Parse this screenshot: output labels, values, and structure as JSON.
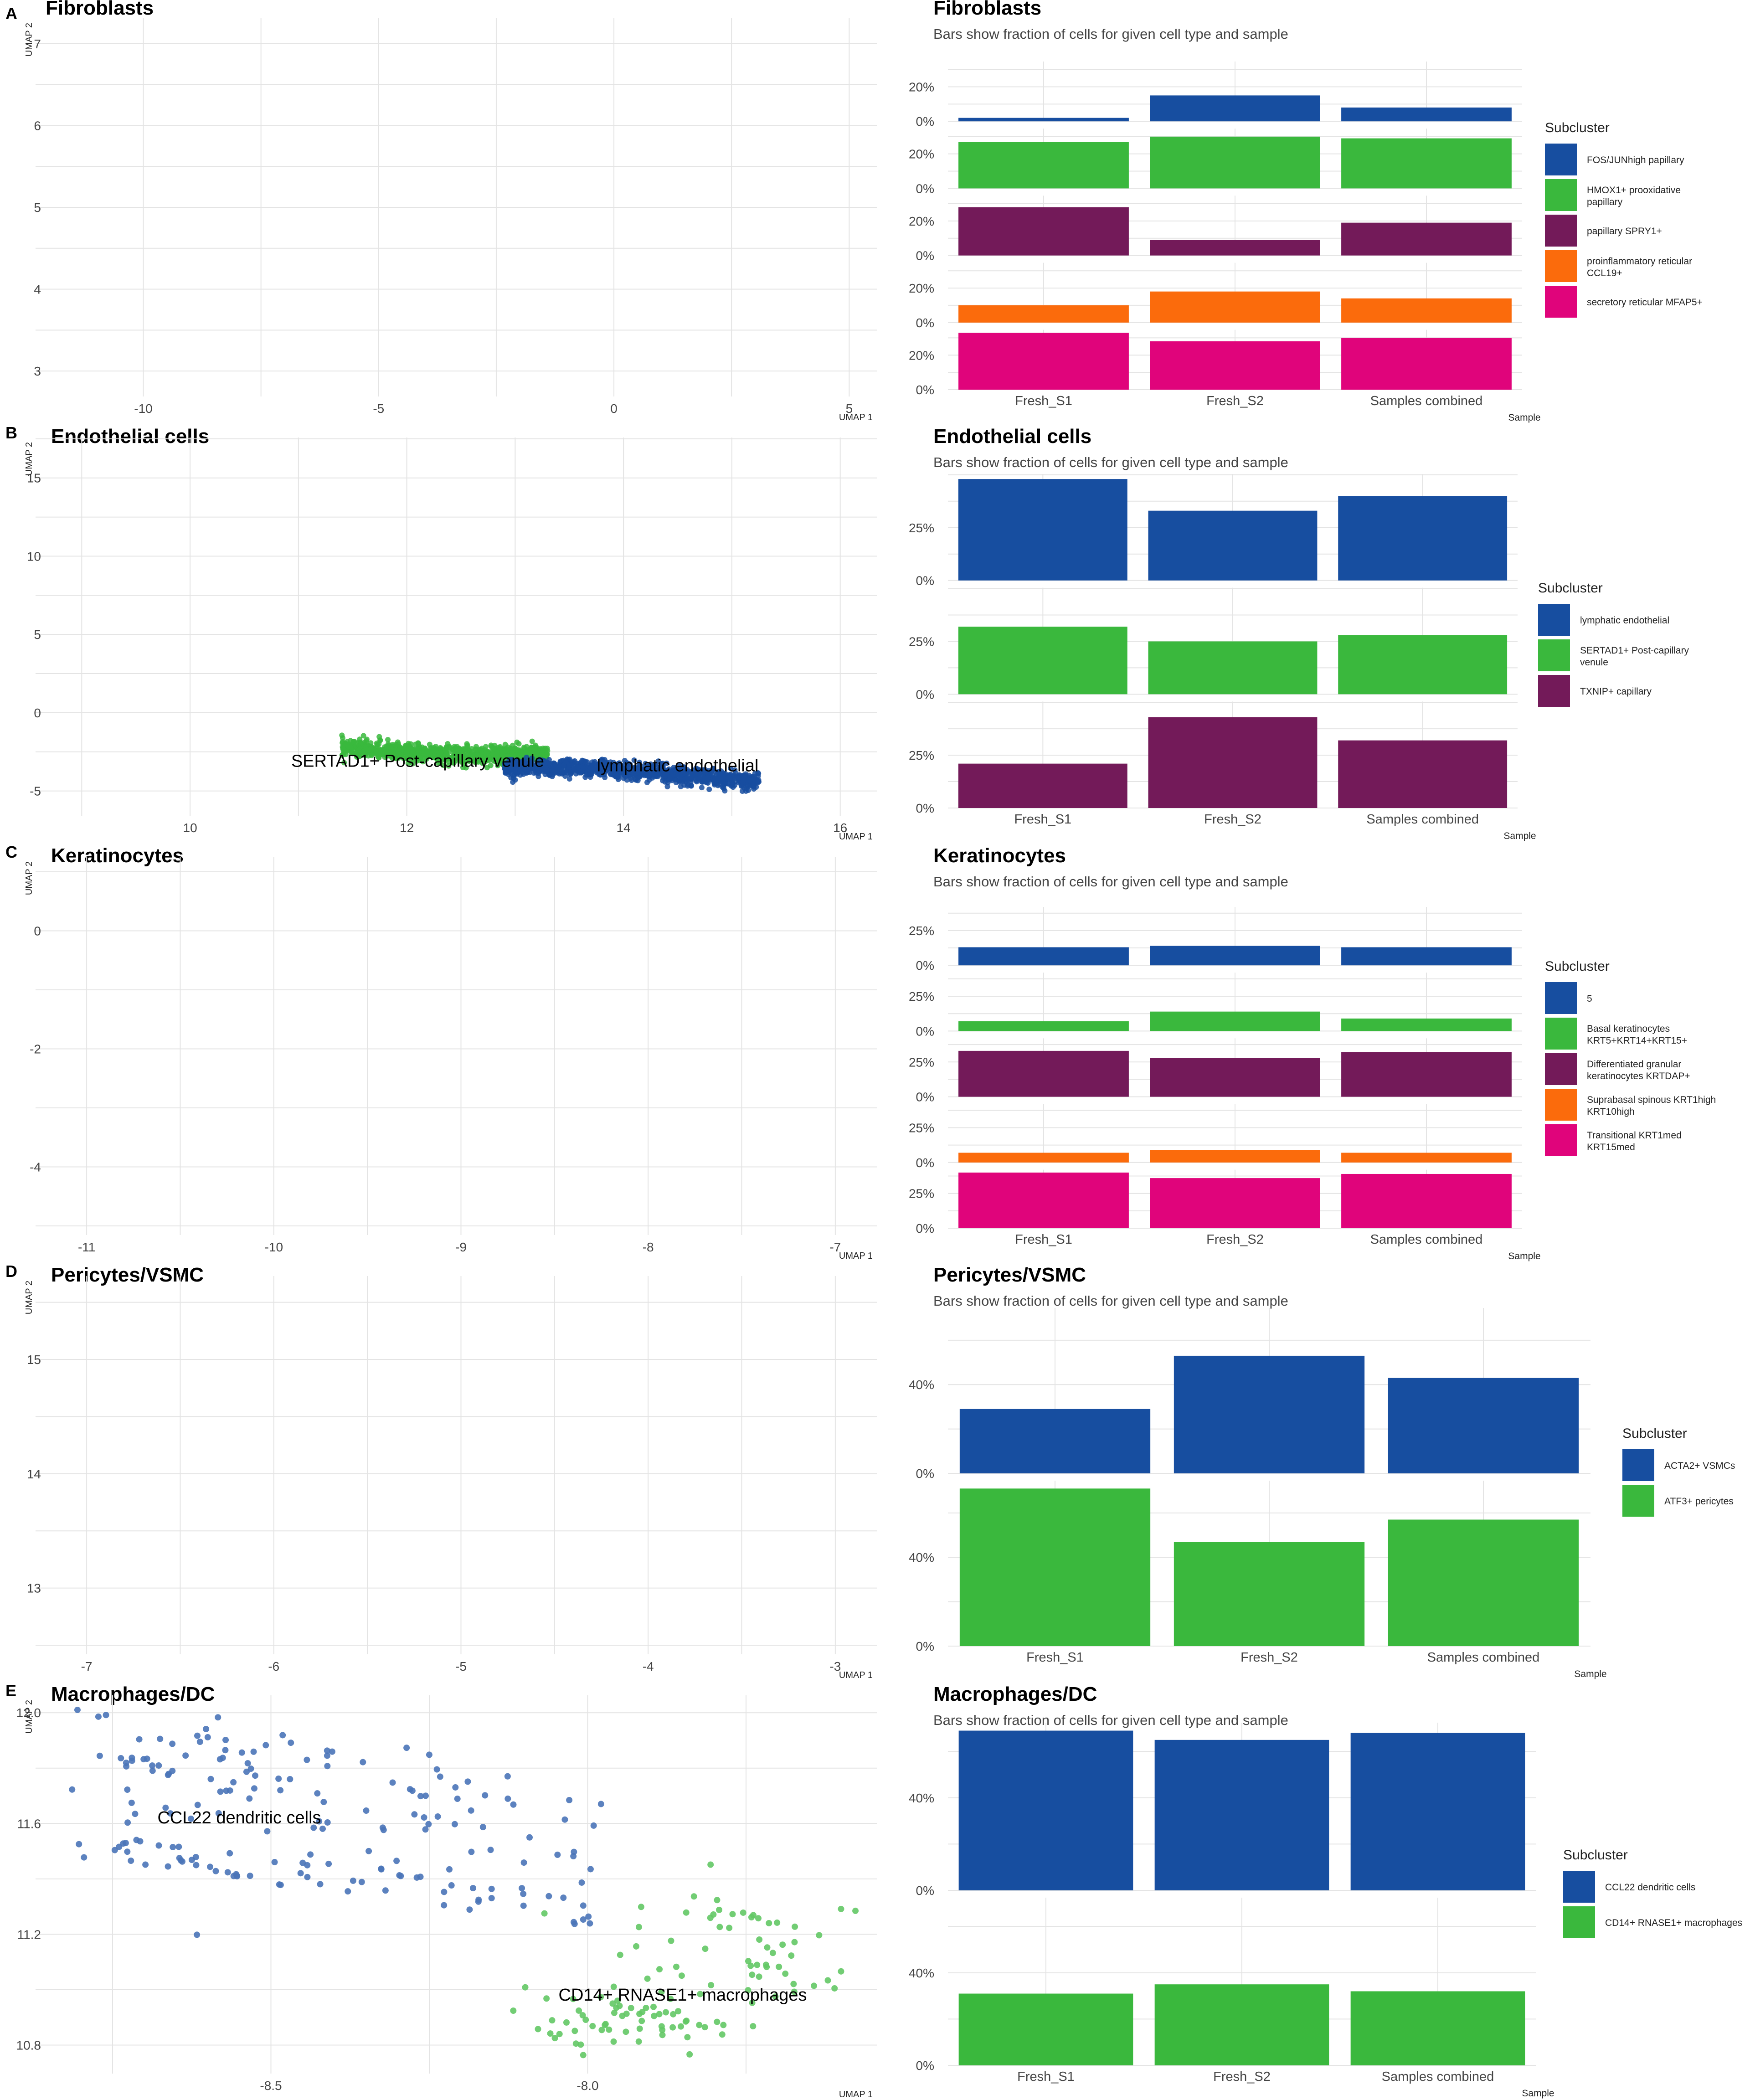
{
  "colors": {
    "blue": "#174EA0",
    "green": "#3AB83D",
    "purple": "#731A59",
    "orange": "#FB6B0C",
    "magenta": "#E0047B",
    "grid": "#E4E4E4",
    "scatter_blue": "#4A74B8",
    "scatter_green": "#63C865"
  },
  "chart_data": [
    {
      "panel": "A",
      "type": "scatter",
      "title": "Fibroblasts",
      "xlabel": "UMAP 1",
      "ylabel": "UMAP 2",
      "xlim": [
        -12,
        5.5
      ],
      "ylim": [
        2.8,
        7.2
      ],
      "xticks": [
        -10,
        -5,
        0,
        5
      ],
      "yticks": [
        3,
        4,
        5,
        6,
        7
      ],
      "points": [],
      "annotations": []
    },
    {
      "panel": "A",
      "type": "bar",
      "title": "Fibroblasts",
      "subtitle": "Bars show fraction of cells for given cell type and sample",
      "xlabel": "Sample",
      "legend_title": "Subcluster",
      "legend_position": "right",
      "categories": [
        "Fresh_S1",
        "Fresh_S2",
        "Samples combined"
      ],
      "tick_labels": [
        "0%",
        "20%"
      ],
      "series": [
        {
          "name": "FOS/JUNhigh papillary",
          "color": "blue",
          "values": [
            0.02,
            0.15,
            0.08
          ]
        },
        {
          "name": "HMOX1+ prooxidative papillary",
          "color": "green",
          "values": [
            0.27,
            0.3,
            0.29
          ]
        },
        {
          "name": "papillary SPRY1+",
          "color": "purple",
          "values": [
            0.28,
            0.09,
            0.19
          ]
        },
        {
          "name": "proinflammatory reticular CCL19+",
          "color": "orange",
          "values": [
            0.1,
            0.18,
            0.14
          ]
        },
        {
          "name": "secretory reticular MFAP5+",
          "color": "magenta",
          "values": [
            0.33,
            0.28,
            0.3
          ]
        }
      ]
    },
    {
      "panel": "B",
      "type": "scatter",
      "title": "Endothelial cells",
      "xlabel": "UMAP 1",
      "ylabel": "UMAP 2",
      "xlim": [
        8.7,
        16.3
      ],
      "ylim": [
        -6,
        17
      ],
      "xticks": [
        10,
        12,
        14,
        16
      ],
      "yticks": [
        -5,
        0,
        5,
        10,
        15
      ],
      "annotations": [
        {
          "text": "SERTAD1+ Post-capillary venule",
          "x": 12.1,
          "y": -3.1
        },
        {
          "text": "lymphatic endothelial",
          "x": 14.5,
          "y": -3.4
        }
      ]
    },
    {
      "panel": "B",
      "type": "bar",
      "title": "Endothelial cells",
      "subtitle": "Bars show fraction of cells for given cell type and sample",
      "xlabel": "Sample",
      "legend_title": "Subcluster",
      "legend_position": "right",
      "categories": [
        "Fresh_S1",
        "Fresh_S2",
        "Samples combined"
      ],
      "tick_labels": [
        "0%",
        "25%"
      ],
      "series": [
        {
          "name": "lymphatic endothelial",
          "color": "blue",
          "values": [
            0.48,
            0.33,
            0.4
          ]
        },
        {
          "name": "SERTAD1+ Post-capillary venule",
          "color": "green",
          "values": [
            0.32,
            0.25,
            0.28
          ]
        },
        {
          "name": "TXNIP+ capillary",
          "color": "purple",
          "values": [
            0.21,
            0.43,
            0.32
          ]
        }
      ]
    },
    {
      "panel": "C",
      "type": "scatter",
      "title": "Keratinocytes",
      "xlabel": "UMAP 1",
      "ylabel": "UMAP 2",
      "xlim": [
        -11.2,
        -6.8
      ],
      "ylim": [
        -5,
        1.1
      ],
      "xticks": [
        -11,
        -10,
        -9,
        -8,
        -7
      ],
      "yticks": [
        -4,
        -2,
        0
      ],
      "points": [],
      "annotations": []
    },
    {
      "panel": "C",
      "type": "bar",
      "title": "Keratinocytes",
      "subtitle": "Bars show fraction of cells for given cell type and sample",
      "xlabel": "Sample",
      "legend_title": "Subcluster",
      "legend_position": "right",
      "categories": [
        "Fresh_S1",
        "Fresh_S2",
        "Samples combined"
      ],
      "tick_labels": [
        "0%",
        "25%"
      ],
      "series": [
        {
          "name": "5",
          "color": "blue",
          "values": [
            0.13,
            0.14,
            0.13
          ]
        },
        {
          "name": "Basal keratinocytes KRT5+KRT14+KRT15+",
          "color": "green",
          "values": [
            0.07,
            0.14,
            0.09
          ]
        },
        {
          "name": "Differentiated granular keratinocytes KRTDAP+",
          "color": "purple",
          "values": [
            0.33,
            0.28,
            0.32
          ]
        },
        {
          "name": "Suprabasal spinous KRT1high KRT10high",
          "color": "orange",
          "values": [
            0.07,
            0.09,
            0.07
          ]
        },
        {
          "name": "Transitional KRT1med KRT15med",
          "color": "magenta",
          "values": [
            0.4,
            0.36,
            0.39
          ]
        }
      ]
    },
    {
      "panel": "D",
      "type": "scatter",
      "title": "Pericytes/VSMC",
      "xlabel": "UMAP 1",
      "ylabel": "UMAP 2",
      "xlim": [
        -7.2,
        -2.8
      ],
      "ylim": [
        12.5,
        15.65
      ],
      "xticks": [
        -7,
        -6,
        -5,
        -4,
        -3
      ],
      "yticks": [
        13,
        14,
        15
      ],
      "points": [],
      "annotations": []
    },
    {
      "panel": "D",
      "type": "bar",
      "title": "Pericytes/VSMC",
      "subtitle": "Bars show fraction of cells for given cell type and sample",
      "xlabel": "Sample",
      "legend_title": "Subcluster",
      "legend_position": "right",
      "categories": [
        "Fresh_S1",
        "Fresh_S2",
        "Samples combined"
      ],
      "tick_labels": [
        "0%",
        "40%"
      ],
      "series": [
        {
          "name": "ACTA2+ VSMCs",
          "color": "blue",
          "values": [
            0.29,
            0.53,
            0.43
          ]
        },
        {
          "name": "ATF3+ pericytes",
          "color": "green",
          "values": [
            0.71,
            0.47,
            0.57
          ]
        }
      ]
    },
    {
      "panel": "E",
      "type": "scatter",
      "title": "Macrophages/DC",
      "xlabel": "UMAP 1",
      "ylabel": "UMAP 2",
      "xlim": [
        -8.85,
        -7.55
      ],
      "ylim": [
        10.73,
        12.03
      ],
      "xticks": [
        -8.5,
        -8.0
      ],
      "xtick_labels": [
        "-8.5",
        "-8.0"
      ],
      "yticks": [
        10.8,
        11.2,
        11.6,
        12.0
      ],
      "ytick_labels": [
        "10.8",
        "11.2",
        "11.6",
        "12.0"
      ],
      "annotations": [
        {
          "text": "CCL22 dendritic cells",
          "x": -8.55,
          "y": 11.62
        },
        {
          "text": "CD14+ RNASE1+ macrophages",
          "x": -7.85,
          "y": 10.98
        }
      ]
    },
    {
      "panel": "E",
      "type": "bar",
      "title": "Macrophages/DC",
      "subtitle": "Bars show fraction of cells for given cell type and sample",
      "xlabel": "Sample",
      "legend_title": "Subcluster",
      "legend_position": "right",
      "categories": [
        "Fresh_S1",
        "Fresh_S2",
        "Samples combined"
      ],
      "tick_labels": [
        "0%",
        "40%"
      ],
      "series": [
        {
          "name": "CCL22 dendritic cells",
          "color": "blue",
          "values": [
            0.69,
            0.65,
            0.68
          ]
        },
        {
          "name": "CD14+ RNASE1+ macrophages",
          "color": "green",
          "values": [
            0.31,
            0.35,
            0.32
          ]
        }
      ]
    }
  ]
}
